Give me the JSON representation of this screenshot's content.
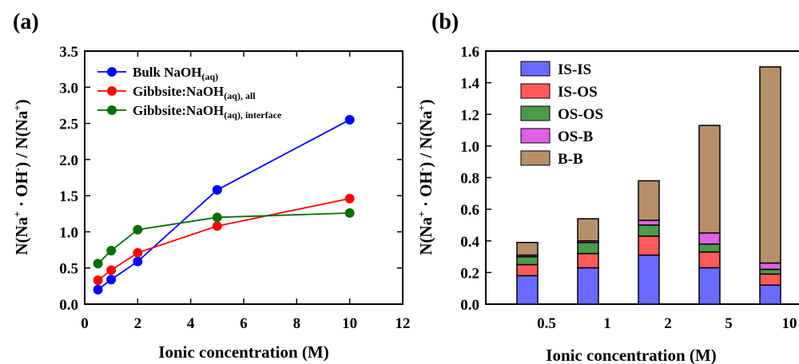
{
  "chart_data": [
    {
      "type": "line",
      "panel_label": "(a)",
      "xlabel": "Ionic concentration (M)",
      "ylabel": "N(Na+ · OH-) / N(Na+)",
      "xlim": [
        0,
        12
      ],
      "ylim": [
        0,
        3.5
      ],
      "xticks": [
        0,
        2,
        4,
        6,
        8,
        10,
        12
      ],
      "yticks": [
        0.0,
        0.5,
        1.0,
        1.5,
        2.0,
        2.5,
        3.0,
        3.5
      ],
      "legend_position": "top-left",
      "series": [
        {
          "name": "Bulk NaOH(aq)",
          "color": "#0000ff",
          "x": [
            0.5,
            1,
            2,
            5,
            10
          ],
          "y": [
            0.2,
            0.34,
            0.59,
            1.58,
            2.55
          ]
        },
        {
          "name": "Gibbsite:NaOH(aq), all",
          "color": "#ff0000",
          "x": [
            0.5,
            1,
            2,
            5,
            10
          ],
          "y": [
            0.33,
            0.47,
            0.71,
            1.08,
            1.46
          ]
        },
        {
          "name": "Gibbsite:NaOH(aq), interface",
          "color": "#007000",
          "x": [
            0.5,
            1,
            2,
            5,
            10
          ],
          "y": [
            0.56,
            0.74,
            1.03,
            1.2,
            1.26
          ]
        }
      ]
    },
    {
      "type": "bar",
      "stacked": true,
      "panel_label": "(b)",
      "xlabel": "Ionic concentration (M)",
      "ylabel": "N(Na+ · OH-) / N(Na+)",
      "ylim": [
        0,
        1.6
      ],
      "yticks": [
        0.0,
        0.2,
        0.4,
        0.6,
        0.8,
        1.0,
        1.2,
        1.4,
        1.6
      ],
      "categories": [
        "0.5",
        "1",
        "2",
        "5",
        "10"
      ],
      "legend_position": "top-left",
      "series": [
        {
          "name": "IS-IS",
          "color": "#6a6aff",
          "values": [
            0.18,
            0.23,
            0.31,
            0.23,
            0.12
          ]
        },
        {
          "name": "IS-OS",
          "color": "#ff5a5a",
          "values": [
            0.07,
            0.09,
            0.12,
            0.1,
            0.07
          ]
        },
        {
          "name": "OS-OS",
          "color": "#4c9a4c",
          "values": [
            0.05,
            0.07,
            0.07,
            0.05,
            0.03
          ]
        },
        {
          "name": "OS-B",
          "color": "#e060e8",
          "values": [
            0.01,
            0.01,
            0.03,
            0.07,
            0.04
          ]
        },
        {
          "name": "B-B",
          "color": "#b5906a",
          "values": [
            0.08,
            0.14,
            0.25,
            0.68,
            1.24
          ]
        }
      ]
    }
  ]
}
